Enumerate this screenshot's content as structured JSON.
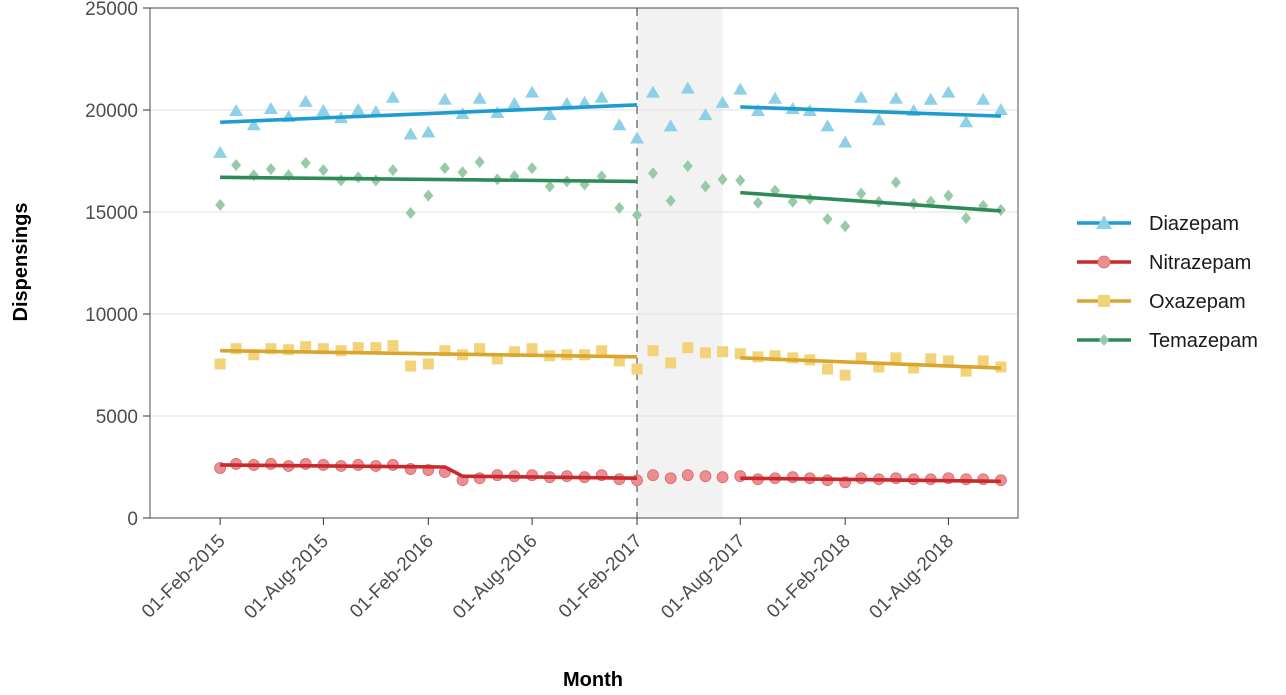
{
  "chart_data": {
    "type": "line",
    "xlabel": "Month",
    "ylabel": "Dispensings",
    "ylim": [
      0,
      25000
    ],
    "xlim": [
      "2014-10-01",
      "2018-12-01"
    ],
    "y_ticks": [
      0,
      5000,
      10000,
      15000,
      20000,
      25000
    ],
    "x_ticks": [
      "2015-02-01",
      "2015-08-01",
      "2016-02-01",
      "2016-08-01",
      "2017-02-01",
      "2017-08-01",
      "2018-02-01",
      "2018-08-01"
    ],
    "x_tick_labels": [
      "01-Feb-2015",
      "01-Aug-2015",
      "01-Feb-2016",
      "01-Aug-2016",
      "01-Feb-2017",
      "01-Aug-2017",
      "01-Feb-2018",
      "01-Aug-2018"
    ],
    "intervention_line": "2017-02-01",
    "shaded_period": [
      "2017-02-01",
      "2017-07-01"
    ],
    "grid": true,
    "legend_position": "right",
    "months": [
      "2015-02",
      "2015-03",
      "2015-04",
      "2015-05",
      "2015-06",
      "2015-07",
      "2015-08",
      "2015-09",
      "2015-10",
      "2015-11",
      "2015-12",
      "2016-01",
      "2016-02",
      "2016-03",
      "2016-04",
      "2016-05",
      "2016-06",
      "2016-07",
      "2016-08",
      "2016-09",
      "2016-10",
      "2016-11",
      "2016-12",
      "2017-01",
      "2017-02",
      "2017-03",
      "2017-04",
      "2017-05",
      "2017-06",
      "2017-07",
      "2017-08",
      "2017-09",
      "2017-10",
      "2017-11",
      "2017-12",
      "2018-01",
      "2018-02",
      "2018-03",
      "2018-04",
      "2018-05",
      "2018-06",
      "2018-07",
      "2018-08",
      "2018-09",
      "2018-10",
      "2018-11"
    ],
    "series": [
      {
        "name": "Diazepam",
        "color": "#1F9BCF",
        "point_color": "#8ED1E6",
        "marker": "triangle",
        "values": [
          17900,
          19950,
          19250,
          20050,
          19650,
          20400,
          19950,
          19600,
          20000,
          19900,
          20600,
          18800,
          18900,
          20500,
          19800,
          20550,
          19850,
          20300,
          20850,
          19750,
          20300,
          20350,
          20600,
          19250,
          18600,
          20850,
          19200,
          21050,
          19750,
          20350,
          21000,
          19950,
          20550,
          20050,
          19950,
          19200,
          18400,
          20600,
          19500,
          20550,
          19950,
          20500,
          20850,
          19400,
          20500,
          20000
        ],
        "trend_pre": [
          [
            0,
            19400
          ],
          [
            24,
            20250
          ]
        ],
        "trend_post": [
          [
            30,
            20150
          ],
          [
            45,
            19700
          ]
        ]
      },
      {
        "name": "Nitrazepam",
        "color": "#C9282D",
        "point_color": "#EB8E92",
        "marker": "circle",
        "values": [
          2450,
          2650,
          2600,
          2650,
          2550,
          2650,
          2600,
          2550,
          2600,
          2550,
          2600,
          2400,
          2350,
          2250,
          1850,
          1950,
          2100,
          2050,
          2100,
          2000,
          2050,
          2000,
          2100,
          1900,
          1850,
          2100,
          1950,
          2100,
          2050,
          2000,
          2050,
          1900,
          1950,
          2000,
          1950,
          1850,
          1750,
          1950,
          1900,
          1950,
          1900,
          1900,
          1950,
          1900,
          1900,
          1850
        ],
        "trend_pre": [
          [
            0,
            2600
          ],
          [
            13,
            2500
          ],
          [
            14,
            2050
          ],
          [
            24,
            1950
          ]
        ],
        "trend_post": [
          [
            30,
            1950
          ],
          [
            45,
            1800
          ]
        ]
      },
      {
        "name": "Oxazepam",
        "color": "#D9A52E",
        "point_color": "#F2D37A",
        "marker": "square",
        "values": [
          7550,
          8300,
          8000,
          8300,
          8250,
          8400,
          8300,
          8200,
          8350,
          8350,
          8450,
          7450,
          7550,
          8200,
          8000,
          8300,
          7800,
          8150,
          8300,
          7950,
          8000,
          8000,
          8200,
          7700,
          7300,
          8200,
          7600,
          8350,
          8100,
          8150,
          8050,
          7900,
          7950,
          7850,
          7750,
          7300,
          7000,
          7850,
          7400,
          7850,
          7350,
          7800,
          7700,
          7200,
          7700,
          7400
        ],
        "trend_pre": [
          [
            0,
            8200
          ],
          [
            24,
            7900
          ]
        ],
        "trend_post": [
          [
            30,
            7850
          ],
          [
            45,
            7350
          ]
        ]
      },
      {
        "name": "Temazepam",
        "color": "#2E8B57",
        "point_color": "#98C9A9",
        "marker": "diamond",
        "values": [
          15350,
          17300,
          16800,
          17100,
          16800,
          17400,
          17050,
          16550,
          16700,
          16550,
          17050,
          14950,
          15800,
          17150,
          16950,
          17450,
          16600,
          16750,
          17150,
          16250,
          16500,
          16350,
          16750,
          15200,
          14850,
          16900,
          15550,
          17250,
          16250,
          16600,
          16550,
          15450,
          16050,
          15500,
          15650,
          14650,
          14300,
          15900,
          15500,
          16450,
          15400,
          15500,
          15800,
          14700,
          15300,
          15100
        ],
        "trend_pre": [
          [
            0,
            16700
          ],
          [
            24,
            16500
          ]
        ],
        "trend_post": [
          [
            30,
            15950
          ],
          [
            45,
            15050
          ]
        ]
      }
    ]
  }
}
